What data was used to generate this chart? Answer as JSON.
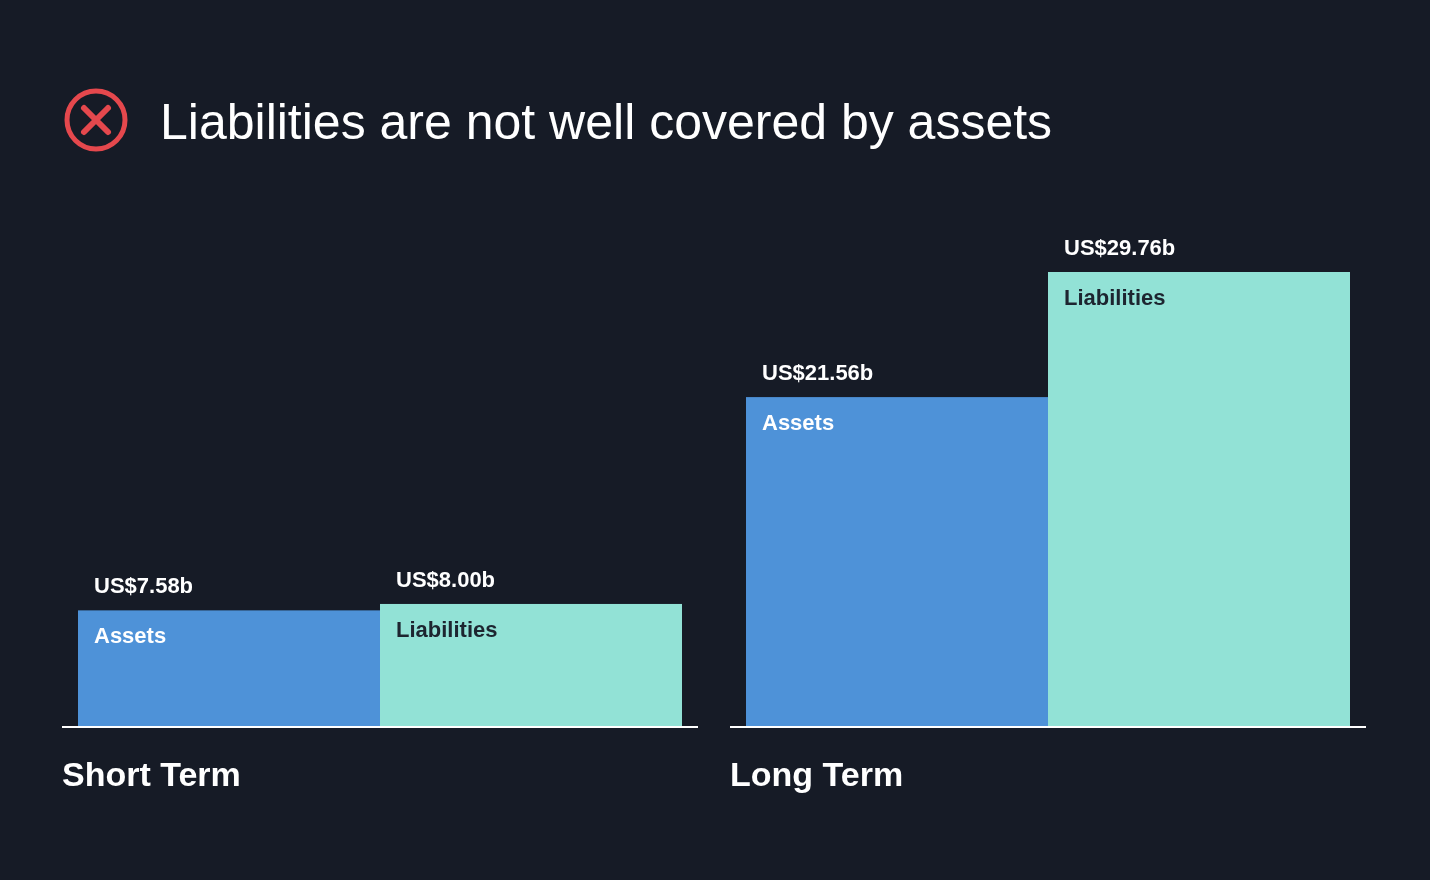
{
  "chart_data": [
    {
      "type": "bar",
      "title": "Liabilities are not well covered by assets",
      "xlabel": "Short Term",
      "categories": [
        "Assets",
        "Liabilities"
      ],
      "values": [
        7580000000,
        8000000000
      ],
      "colors": [
        "#4e92d8",
        "#92e2d6"
      ],
      "value_labels": [
        "US$7.58b",
        "US$8.00b"
      ]
    },
    {
      "type": "bar",
      "xlabel": "Long Term",
      "categories": [
        "Assets",
        "Liabilities"
      ],
      "values": [
        21560000000,
        29760000000
      ],
      "colors": [
        "#4e92d8",
        "#92e2d6"
      ],
      "value_labels": [
        "US$21.56b",
        "US$29.76b"
      ]
    }
  ]
}
